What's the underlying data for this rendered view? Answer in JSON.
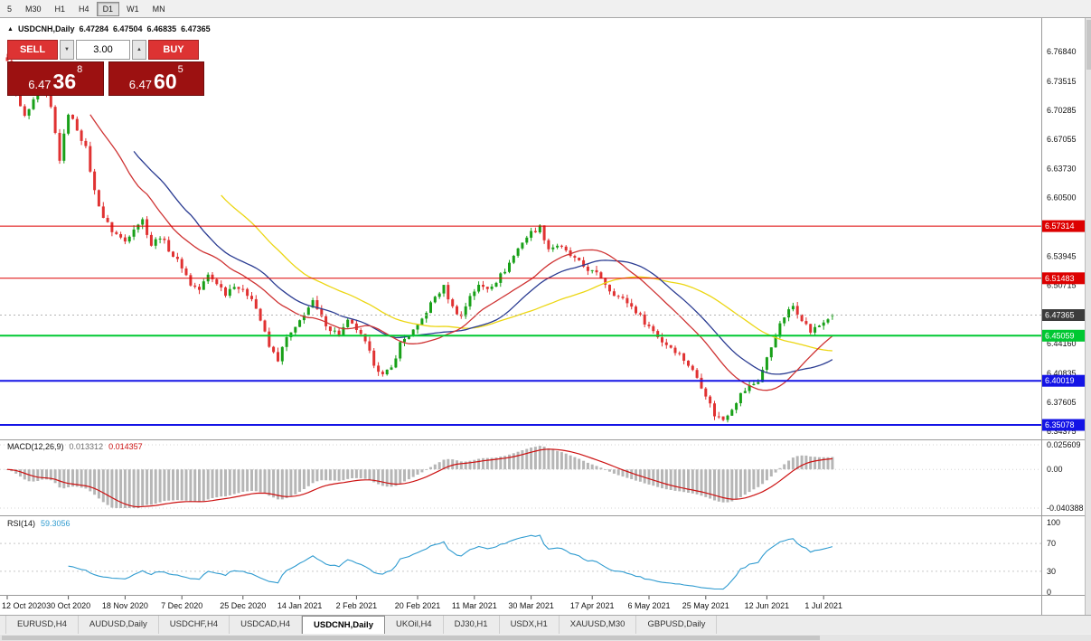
{
  "toolbar": {
    "buttons": [
      {
        "label": "5",
        "active": false
      },
      {
        "label": "M30",
        "active": false
      },
      {
        "label": "H1",
        "active": false
      },
      {
        "label": "H4",
        "active": false
      },
      {
        "label": "D1",
        "active": true
      },
      {
        "label": "W1",
        "active": false
      },
      {
        "label": "MN",
        "active": false
      }
    ]
  },
  "chart_header": {
    "direction_icon": "▲",
    "symbol": "USDCNH,Daily",
    "open": "6.47284",
    "high": "6.47504",
    "low": "6.46835",
    "close": "6.47365"
  },
  "trade_panel": {
    "sell_label": "SELL",
    "buy_label": "BUY",
    "volume": "3.00",
    "volume_down_icon": "▼",
    "volume_up_icon": "▲",
    "sell_price": {
      "prefix": "6.47",
      "big": "36",
      "sup": "8"
    },
    "buy_price": {
      "prefix": "6.47",
      "big": "60",
      "sup": "5"
    }
  },
  "price_axis": {
    "labels": [
      {
        "text": "6.76840",
        "price": 6.7684
      },
      {
        "text": "6.73515",
        "price": 6.73515
      },
      {
        "text": "6.70285",
        "price": 6.70285
      },
      {
        "text": "6.67055",
        "price": 6.67055
      },
      {
        "text": "6.63730",
        "price": 6.6373
      },
      {
        "text": "6.60500",
        "price": 6.605
      },
      {
        "text": "6.53945",
        "price": 6.53945
      },
      {
        "text": "6.50715",
        "price": 6.50715
      },
      {
        "text": "6.44160",
        "price": 6.4416
      },
      {
        "text": "6.40835",
        "price": 6.40835
      },
      {
        "text": "6.37605",
        "price": 6.37605
      },
      {
        "text": "6.34375",
        "price": 6.34375
      }
    ],
    "current_tag": {
      "text": "6.47365",
      "price": 6.47365,
      "color": "#3c3c3c"
    }
  },
  "chart_data": {
    "type": "candlestick",
    "symbol": "USDCNH",
    "timeframe": "Daily",
    "price_range": {
      "min": 6.34375,
      "max": 6.7684
    },
    "num_candles": 190,
    "last_candle": {
      "open": 6.47284,
      "high": 6.47504,
      "low": 6.46835,
      "close": 6.47365
    },
    "up_color": "#18a018",
    "down_color": "#e03232",
    "close_path_anchors": [
      [
        0,
        6.756
      ],
      [
        2,
        6.718
      ],
      [
        4,
        6.695
      ],
      [
        6,
        6.712
      ],
      [
        8,
        6.732
      ],
      [
        10,
        6.705
      ],
      [
        12,
        6.648
      ],
      [
        14,
        6.7
      ],
      [
        16,
        6.682
      ],
      [
        18,
        6.66
      ],
      [
        20,
        6.612
      ],
      [
        22,
        6.583
      ],
      [
        24,
        6.568
      ],
      [
        27,
        6.556
      ],
      [
        29,
        6.572
      ],
      [
        31,
        6.58
      ],
      [
        33,
        6.552
      ],
      [
        35,
        6.562
      ],
      [
        38,
        6.54
      ],
      [
        40,
        6.528
      ],
      [
        42,
        6.508
      ],
      [
        44,
        6.502
      ],
      [
        46,
        6.518
      ],
      [
        48,
        6.51
      ],
      [
        50,
        6.498
      ],
      [
        52,
        6.508
      ],
      [
        54,
        6.5
      ],
      [
        56,
        6.494
      ],
      [
        58,
        6.468
      ],
      [
        60,
        6.438
      ],
      [
        62,
        6.424
      ],
      [
        64,
        6.448
      ],
      [
        66,
        6.458
      ],
      [
        68,
        6.476
      ],
      [
        70,
        6.488
      ],
      [
        72,
        6.47
      ],
      [
        74,
        6.458
      ],
      [
        76,
        6.452
      ],
      [
        78,
        6.466
      ],
      [
        80,
        6.458
      ],
      [
        82,
        6.442
      ],
      [
        84,
        6.42
      ],
      [
        86,
        6.406
      ],
      [
        88,
        6.414
      ],
      [
        90,
        6.442
      ],
      [
        92,
        6.452
      ],
      [
        94,
        6.46
      ],
      [
        96,
        6.478
      ],
      [
        98,
        6.494
      ],
      [
        100,
        6.505
      ],
      [
        102,
        6.482
      ],
      [
        104,
        6.472
      ],
      [
        106,
        6.496
      ],
      [
        108,
        6.506
      ],
      [
        110,
        6.504
      ],
      [
        112,
        6.512
      ],
      [
        114,
        6.524
      ],
      [
        116,
        6.54
      ],
      [
        118,
        6.556
      ],
      [
        120,
        6.566
      ],
      [
        122,
        6.572
      ],
      [
        124,
        6.548
      ],
      [
        126,
        6.552
      ],
      [
        128,
        6.544
      ],
      [
        130,
        6.536
      ],
      [
        132,
        6.528
      ],
      [
        134,
        6.522
      ],
      [
        136,
        6.516
      ],
      [
        138,
        6.502
      ],
      [
        140,
        6.494
      ],
      [
        142,
        6.488
      ],
      [
        144,
        6.478
      ],
      [
        146,
        6.466
      ],
      [
        148,
        6.456
      ],
      [
        150,
        6.444
      ],
      [
        152,
        6.438
      ],
      [
        154,
        6.43
      ],
      [
        156,
        6.418
      ],
      [
        158,
        6.404
      ],
      [
        160,
        6.385
      ],
      [
        162,
        6.362
      ],
      [
        164,
        6.357
      ],
      [
        166,
        6.37
      ],
      [
        168,
        6.385
      ],
      [
        170,
        6.394
      ],
      [
        172,
        6.4
      ],
      [
        174,
        6.425
      ],
      [
        176,
        6.452
      ],
      [
        178,
        6.472
      ],
      [
        180,
        6.484
      ],
      [
        182,
        6.47
      ],
      [
        184,
        6.455
      ],
      [
        186,
        6.462
      ],
      [
        188,
        6.47
      ],
      [
        189,
        6.47365
      ]
    ],
    "moving_averages": [
      {
        "period": 50,
        "color": "#ecd613"
      },
      {
        "period": 30,
        "color": "#2b3c92"
      },
      {
        "period": 20,
        "color": "#cf3434"
      }
    ],
    "levels": [
      {
        "label": "6.57314",
        "price": 6.57314,
        "color": "#dd0000",
        "width": 1
      },
      {
        "label": "6.51483",
        "price": 6.51483,
        "color": "#dd0000",
        "width": 1
      },
      {
        "label": "6.45059",
        "price": 6.45059,
        "color": "#00c832",
        "width": 2
      },
      {
        "label": "6.40019",
        "price": 6.40019,
        "color": "#1414e6",
        "width": 2
      },
      {
        "label": "6.35078",
        "price": 6.35078,
        "color": "#1414e6",
        "width": 2
      }
    ]
  },
  "macd": {
    "name": "MACD(12,26,9)",
    "value_main": "0.013312",
    "value_signal": "0.014357",
    "fast": 12,
    "slow": 26,
    "smoothing": 9,
    "hist_color": "#b6b6b6",
    "signal_color": "#cc1111",
    "axis": [
      {
        "text": "0.025609",
        "value": 0.025609
      },
      {
        "text": "0.00",
        "value": 0
      },
      {
        "text": "-0.040388",
        "value": -0.040388
      }
    ]
  },
  "rsi": {
    "name": "RSI(14)",
    "value": "59.3056",
    "period": 14,
    "line_color": "#2f9bd0",
    "levels": [
      70,
      30
    ],
    "axis": [
      {
        "text": "100",
        "value": 100
      },
      {
        "text": "70",
        "value": 70
      },
      {
        "text": "30",
        "value": 30
      },
      {
        "text": "0",
        "value": 0
      }
    ]
  },
  "date_axis": {
    "labels": [
      {
        "text": "12 Oct 2020",
        "idx": 0
      },
      {
        "text": "30 Oct 2020",
        "idx": 14
      },
      {
        "text": "18 Nov 2020",
        "idx": 27
      },
      {
        "text": "7 Dec 2020",
        "idx": 40
      },
      {
        "text": "25 Dec 2020",
        "idx": 54
      },
      {
        "text": "14 Jan 2021",
        "idx": 67
      },
      {
        "text": "2 Feb 2021",
        "idx": 80
      },
      {
        "text": "20 Feb 2021",
        "idx": 94
      },
      {
        "text": "11 Mar 2021",
        "idx": 107
      },
      {
        "text": "30 Mar 2021",
        "idx": 120
      },
      {
        "text": "17 Apr 2021",
        "idx": 134
      },
      {
        "text": "6 May 2021",
        "idx": 147
      },
      {
        "text": "25 May 2021",
        "idx": 160
      },
      {
        "text": "12 Jun 2021",
        "idx": 174
      },
      {
        "text": "1 Jul 2021",
        "idx": 187
      }
    ]
  },
  "tabs": [
    {
      "label": "EURUSD,H4",
      "active": false
    },
    {
      "label": "AUDUSD,Daily",
      "active": false
    },
    {
      "label": "USDCHF,H4",
      "active": false
    },
    {
      "label": "USDCAD,H4",
      "active": false
    },
    {
      "label": "USDCNH,Daily",
      "active": true
    },
    {
      "label": "UKOil,H4",
      "active": false
    },
    {
      "label": "DJ30,H1",
      "active": false
    },
    {
      "label": "USDX,H1",
      "active": false
    },
    {
      "label": "XAUUSD,M30",
      "active": false
    },
    {
      "label": "GBPUSD,Daily",
      "active": false
    }
  ]
}
